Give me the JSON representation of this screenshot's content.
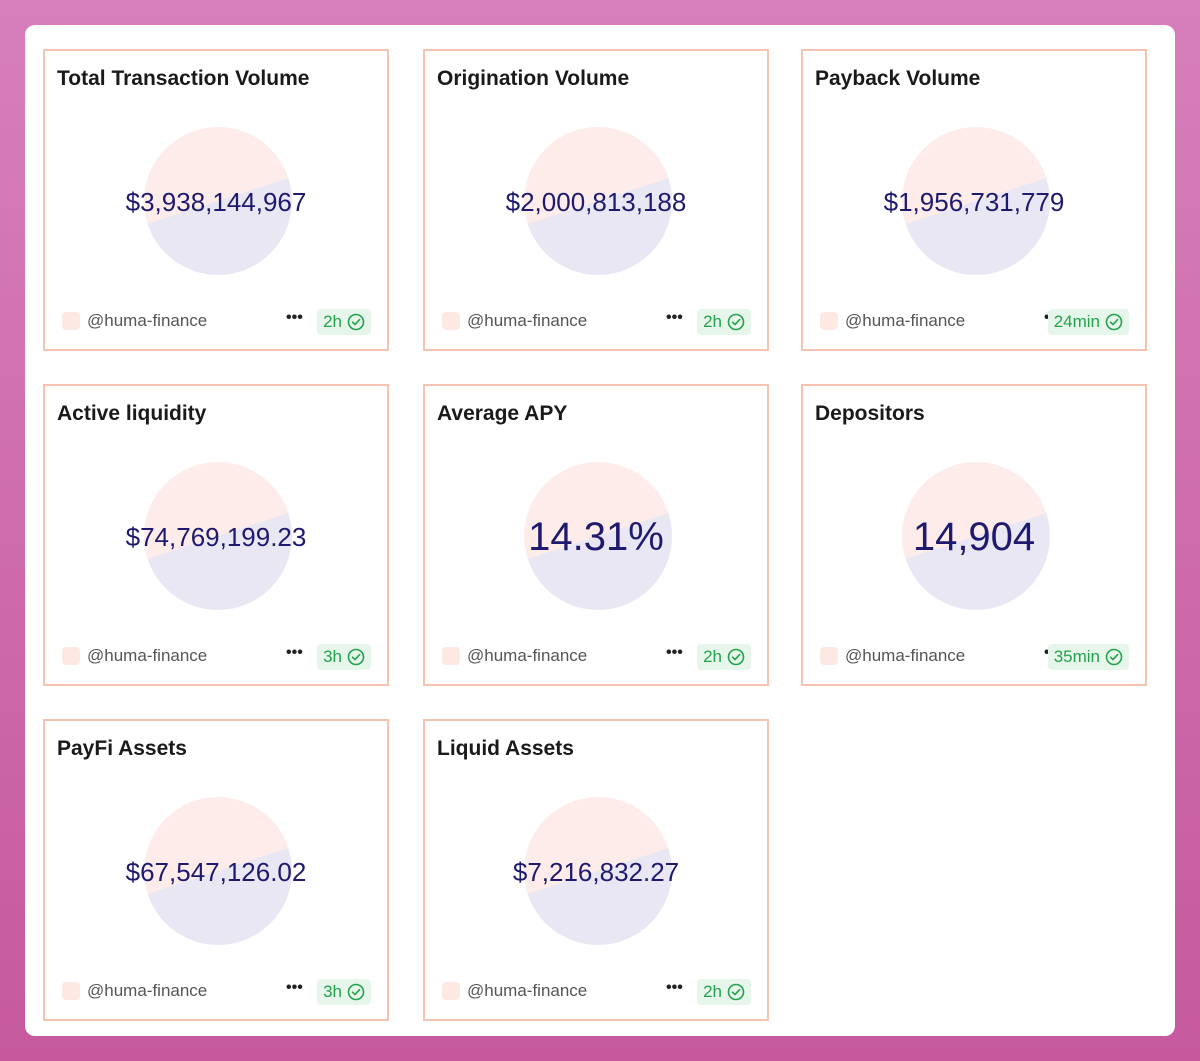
{
  "cards": [
    {
      "title": "Total Transaction Volume",
      "value": "$3,938,144,967",
      "owner": "@huma-finance",
      "freshness": "2h"
    },
    {
      "title": "Origination Volume",
      "value": "$2,000,813,188",
      "owner": "@huma-finance",
      "freshness": "2h"
    },
    {
      "title": "Payback Volume",
      "value": "$1,956,731,779",
      "owner": "@huma-finance",
      "freshness": "24min"
    },
    {
      "title": "Active liquidity",
      "value": "$74,769,199.23",
      "owner": "@huma-finance",
      "freshness": "3h"
    },
    {
      "title": "Average APY",
      "value": "14.31%",
      "owner": "@huma-finance",
      "freshness": "2h"
    },
    {
      "title": "Depositors",
      "value": "14,904",
      "owner": "@huma-finance",
      "freshness": "35min"
    },
    {
      "title": "PayFi Assets",
      "value": "$67,547,126.02",
      "owner": "@huma-finance",
      "freshness": "3h"
    },
    {
      "title": "Liquid Assets",
      "value": "$7,216,832.27",
      "owner": "@huma-finance",
      "freshness": "2h"
    }
  ],
  "icons": {
    "more": "more-horizontal-icon",
    "check": "check-circle-icon"
  },
  "colors": {
    "background_top": "#d77fbd",
    "background_bottom": "#c6599e",
    "card_border": "#f7c3b1",
    "value_text": "#1e1a6f",
    "badge_bg": "#e7f6ea",
    "badge_text": "#23a24d"
  }
}
